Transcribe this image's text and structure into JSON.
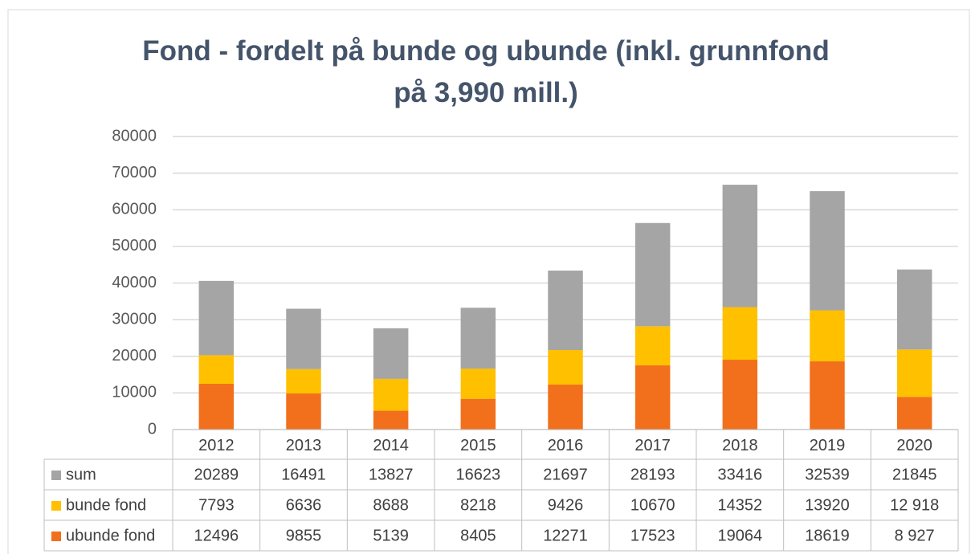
{
  "chart_data": {
    "type": "bar",
    "stacked": true,
    "title": "Fond - fordelt på bunde og ubunde (inkl. grunnfond\npå 3,990 mill.)",
    "categories": [
      "2012",
      "2013",
      "2014",
      "2015",
      "2016",
      "2017",
      "2018",
      "2019",
      "2020"
    ],
    "series": [
      {
        "name": "sum",
        "color": "#a5a5a5",
        "values": [
          20289,
          16491,
          13827,
          16623,
          21697,
          28193,
          33416,
          32539,
          21845
        ]
      },
      {
        "name": "bunde fond",
        "color": "#ffc000",
        "values": [
          7793,
          6636,
          8688,
          8218,
          9426,
          10670,
          14352,
          13920,
          12918
        ],
        "value_labels": [
          "7793",
          "6636",
          "8688",
          "8218",
          "9426",
          "10670",
          "14352",
          "13920",
          "12 918"
        ]
      },
      {
        "name": "ubunde fond",
        "color": "#f26f1c",
        "values": [
          12496,
          9855,
          5139,
          8405,
          12271,
          17523,
          19064,
          18619,
          8927
        ],
        "value_labels": [
          "12496",
          "9855",
          "5139",
          "8405",
          "12271",
          "17523",
          "19064",
          "18619",
          "8 927"
        ]
      }
    ],
    "ylim": [
      0,
      80000
    ],
    "yticks": [
      0,
      10000,
      20000,
      30000,
      40000,
      50000,
      60000,
      70000,
      80000
    ],
    "grid": true,
    "legend": "table"
  }
}
